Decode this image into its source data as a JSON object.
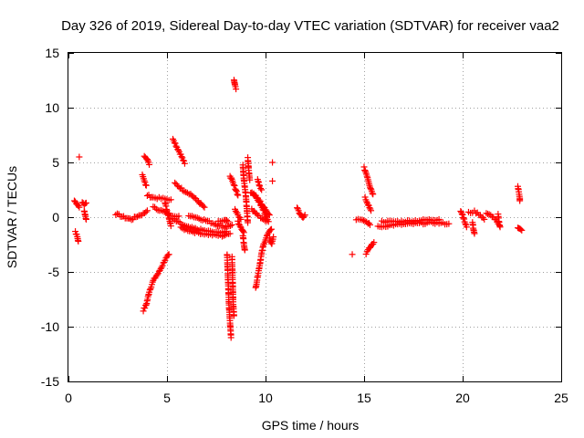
{
  "chart_data": {
    "type": "scatter",
    "title": "Day 326 of 2019, Sidereal Day-to-day VTEC variation (SDTVAR) for receiver vaa2",
    "xlabel": "GPS time / hours",
    "ylabel": "SDTVAR / TECUs",
    "xlim": [
      0,
      25
    ],
    "ylim": [
      -15,
      15
    ],
    "xticks": [
      0,
      5,
      10,
      15,
      20,
      25
    ],
    "yticks": [
      -15,
      -10,
      -5,
      0,
      5,
      10,
      15
    ],
    "xtick_labels": [
      "0",
      "5",
      "10",
      "15",
      "20",
      "25"
    ],
    "ytick_labels": [
      "-15",
      "-10",
      "-5",
      "0",
      "5",
      "10",
      "15"
    ],
    "grid": true,
    "marker": "plus",
    "color": "#ff0000",
    "series": [
      {
        "name": "vaa2",
        "tracks": [
          [
            [
              0.3,
              1.5
            ],
            [
              0.45,
              1.2
            ],
            [
              0.55,
              0.9
            ]
          ],
          [
            [
              0.35,
              -1.3
            ],
            [
              0.45,
              -1.8
            ],
            [
              0.5,
              -2.2
            ]
          ],
          [
            [
              0.55,
              5.5
            ]
          ],
          [
            [
              0.7,
              1.3
            ],
            [
              0.8,
              1.2
            ],
            [
              0.9,
              1.3
            ]
          ],
          [
            [
              0.8,
              0.6
            ],
            [
              0.85,
              0.2
            ],
            [
              0.9,
              -0.2
            ]
          ],
          [
            [
              2.4,
              0.3
            ],
            [
              2.8,
              0.0
            ],
            [
              3.2,
              -0.2
            ],
            [
              3.5,
              0.1
            ],
            [
              3.8,
              0.3
            ],
            [
              4.0,
              0.6
            ]
          ],
          [
            [
              3.8,
              -8.5
            ],
            [
              3.95,
              -8.0
            ],
            [
              4.1,
              -6.8
            ],
            [
              4.3,
              -5.8
            ],
            [
              4.6,
              -5.0
            ],
            [
              4.9,
              -3.9
            ],
            [
              5.1,
              -3.4
            ]
          ],
          [
            [
              3.75,
              3.8
            ],
            [
              3.85,
              3.3
            ],
            [
              3.95,
              2.9
            ]
          ],
          [
            [
              3.85,
              5.6
            ],
            [
              4.0,
              5.3
            ],
            [
              4.1,
              4.8
            ]
          ],
          [
            [
              4.0,
              2.0
            ],
            [
              4.3,
              1.8
            ],
            [
              4.7,
              1.7
            ],
            [
              5.2,
              1.6
            ]
          ],
          [
            [
              4.3,
              0.9
            ],
            [
              4.7,
              0.6
            ],
            [
              5.2,
              0.2
            ],
            [
              5.6,
              0.1
            ]
          ],
          [
            [
              4.9,
              1.3
            ],
            [
              5.0,
              0.6
            ],
            [
              5.1,
              0.0
            ],
            [
              5.2,
              -0.8
            ]
          ],
          [
            [
              5.3,
              7.2
            ],
            [
              5.5,
              6.4
            ],
            [
              5.7,
              5.7
            ],
            [
              5.9,
              4.9
            ]
          ],
          [
            [
              5.4,
              3.1
            ],
            [
              5.8,
              2.5
            ],
            [
              6.2,
              2.1
            ],
            [
              6.6,
              1.4
            ],
            [
              6.9,
              0.9
            ]
          ],
          [
            [
              5.3,
              -0.2
            ],
            [
              6.0,
              -0.9
            ],
            [
              6.8,
              -1.2
            ],
            [
              7.5,
              -1.4
            ],
            [
              8.0,
              -1.3
            ]
          ],
          [
            [
              5.7,
              -1.0
            ],
            [
              6.5,
              -1.4
            ],
            [
              7.2,
              -1.6
            ],
            [
              7.8,
              -1.7
            ],
            [
              8.2,
              -1.5
            ]
          ],
          [
            [
              6.1,
              0.2
            ],
            [
              6.8,
              -0.2
            ],
            [
              7.4,
              -0.6
            ],
            [
              7.9,
              -0.9
            ],
            [
              8.3,
              -0.7
            ]
          ],
          [
            [
              7.6,
              -0.4
            ],
            [
              7.9,
              -0.3
            ],
            [
              8.1,
              -0.4
            ]
          ],
          [
            [
              8.05,
              -3.4
            ],
            [
              8.1,
              -5.8
            ],
            [
              8.15,
              -8.2
            ],
            [
              8.2,
              -9.6
            ],
            [
              8.25,
              -11.0
            ]
          ],
          [
            [
              8.3,
              -3.6
            ],
            [
              8.33,
              -5.7
            ],
            [
              8.36,
              -7.9
            ],
            [
              8.4,
              -9.0
            ]
          ],
          [
            [
              8.4,
              12.6
            ],
            [
              8.45,
              12.0
            ],
            [
              8.5,
              11.7
            ]
          ],
          [
            [
              8.2,
              3.8
            ],
            [
              8.35,
              3.1
            ],
            [
              8.5,
              2.5
            ],
            [
              8.6,
              2.0
            ]
          ],
          [
            [
              8.45,
              0.7
            ],
            [
              8.6,
              0.2
            ],
            [
              8.75,
              -0.2
            ]
          ],
          [
            [
              8.6,
              -0.4
            ],
            [
              8.75,
              -0.9
            ],
            [
              8.9,
              -1.4
            ]
          ],
          [
            [
              8.85,
              -1.7
            ],
            [
              8.9,
              -2.4
            ],
            [
              8.95,
              -3.0
            ]
          ],
          [
            [
              8.85,
              4.8
            ],
            [
              8.9,
              3.4
            ],
            [
              9.0,
              2.0
            ],
            [
              9.05,
              0.8
            ],
            [
              9.1,
              -0.5
            ]
          ],
          [
            [
              9.1,
              5.4
            ],
            [
              9.15,
              4.3
            ],
            [
              9.2,
              3.4
            ]
          ],
          [
            [
              9.25,
              2.3
            ],
            [
              9.55,
              1.8
            ],
            [
              9.85,
              1.1
            ],
            [
              10.05,
              0.5
            ],
            [
              10.2,
              0.2
            ]
          ],
          [
            [
              9.3,
              0.7
            ],
            [
              9.6,
              0.2
            ],
            [
              9.9,
              -0.2
            ],
            [
              10.15,
              -0.4
            ]
          ],
          [
            [
              9.4,
              2.2
            ],
            [
              9.7,
              1.3
            ],
            [
              9.95,
              0.4
            ],
            [
              10.1,
              -0.2
            ]
          ],
          [
            [
              9.5,
              -6.5
            ],
            [
              9.6,
              -5.4
            ],
            [
              9.7,
              -4.4
            ],
            [
              9.8,
              -3.3
            ],
            [
              9.9,
              -2.5
            ],
            [
              10.1,
              -1.6
            ],
            [
              10.3,
              -1.1
            ]
          ],
          [
            [
              9.6,
              3.5
            ],
            [
              9.7,
              2.8
            ],
            [
              9.8,
              2.5
            ]
          ],
          [
            [
              10.2,
              -1.9
            ],
            [
              10.3,
              -2.5
            ],
            [
              10.4,
              -1.8
            ]
          ],
          [
            [
              10.35,
              5.0
            ]
          ],
          [
            [
              10.35,
              3.3
            ]
          ],
          [
            [
              11.6,
              0.8
            ],
            [
              11.75,
              0.3
            ],
            [
              11.9,
              -0.1
            ],
            [
              12.0,
              0.2
            ]
          ],
          [
            [
              14.4,
              -3.4
            ]
          ],
          [
            [
              14.6,
              -0.2
            ],
            [
              14.9,
              -0.3
            ],
            [
              15.2,
              -0.5
            ],
            [
              15.3,
              -0.7
            ]
          ],
          [
            [
              15.0,
              4.5
            ],
            [
              15.15,
              3.8
            ],
            [
              15.3,
              2.8
            ],
            [
              15.45,
              2.1
            ]
          ],
          [
            [
              15.05,
              1.8
            ],
            [
              15.2,
              1.2
            ],
            [
              15.35,
              0.6
            ]
          ],
          [
            [
              15.1,
              -3.3
            ],
            [
              15.25,
              -2.9
            ],
            [
              15.4,
              -2.5
            ],
            [
              15.5,
              -2.3
            ]
          ],
          [
            [
              15.7,
              -0.9
            ],
            [
              16.5,
              -0.7
            ],
            [
              17.5,
              -0.6
            ],
            [
              18.5,
              -0.5
            ],
            [
              19.3,
              -0.6
            ]
          ],
          [
            [
              15.9,
              -0.4
            ],
            [
              16.8,
              -0.4
            ],
            [
              17.8,
              -0.3
            ],
            [
              18.8,
              -0.2
            ]
          ],
          [
            [
              19.9,
              0.6
            ],
            [
              20.0,
              0.2
            ],
            [
              20.1,
              -0.4
            ],
            [
              20.2,
              -0.9
            ]
          ],
          [
            [
              20.3,
              0.4
            ],
            [
              20.6,
              0.5
            ],
            [
              20.9,
              0.2
            ],
            [
              21.1,
              -0.2
            ]
          ],
          [
            [
              20.5,
              -0.5
            ],
            [
              20.55,
              -1.1
            ],
            [
              20.6,
              -1.5
            ]
          ],
          [
            [
              21.2,
              0.3
            ],
            [
              21.5,
              0.1
            ],
            [
              21.7,
              -0.3
            ],
            [
              21.8,
              -0.6
            ]
          ],
          [
            [
              21.8,
              0.2
            ],
            [
              21.85,
              -0.5
            ],
            [
              21.9,
              -0.9
            ]
          ],
          [
            [
              22.8,
              2.8
            ],
            [
              22.85,
              2.3
            ],
            [
              22.9,
              1.8
            ],
            [
              22.9,
              1.5
            ]
          ],
          [
            [
              22.8,
              -1.0
            ],
            [
              22.9,
              -1.1
            ],
            [
              23.0,
              -1.2
            ]
          ]
        ]
      }
    ]
  }
}
